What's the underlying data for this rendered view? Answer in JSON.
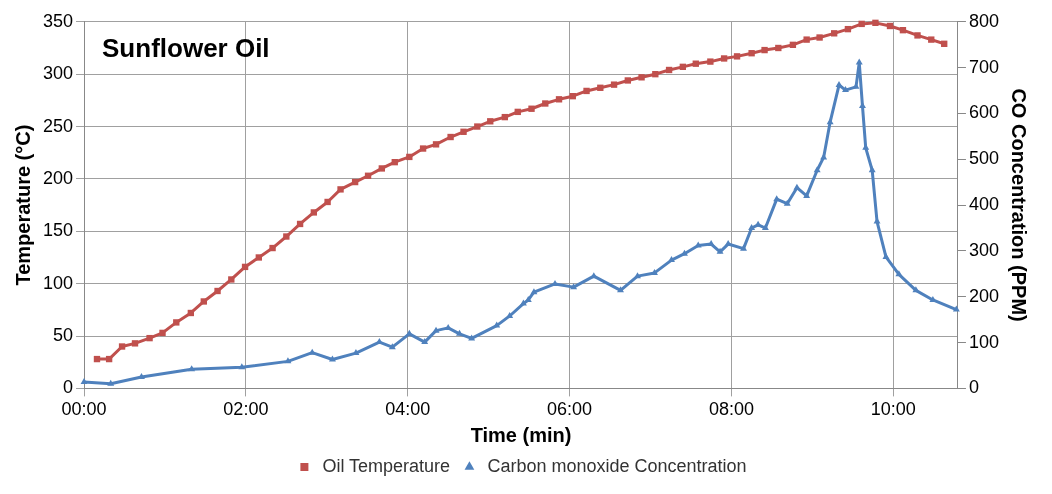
{
  "chart_data": {
    "type": "line",
    "title": "Sunflower Oil",
    "xlabel": "Time (min)",
    "ylabel": "Temperature (°C)",
    "y2label": "CO Concentration (PPM)",
    "xlim": [
      0,
      10.8
    ],
    "xticks": [
      {
        "value": 0,
        "label": "00:00"
      },
      {
        "value": 2,
        "label": "02:00"
      },
      {
        "value": 4,
        "label": "04:00"
      },
      {
        "value": 6,
        "label": "06:00"
      },
      {
        "value": 8,
        "label": "08:00"
      },
      {
        "value": 10,
        "label": "10:00"
      }
    ],
    "ylim": [
      0,
      350
    ],
    "yticks": [
      0,
      50,
      100,
      150,
      200,
      250,
      300,
      350
    ],
    "y2lim": [
      0,
      800
    ],
    "y2ticks": [
      0,
      100,
      200,
      300,
      400,
      500,
      600,
      700,
      800
    ],
    "grid": true,
    "legend": "bottom",
    "line_style": "solid",
    "series": [
      {
        "name": "Oil Temperature",
        "color": "#c0504d",
        "marker": "square",
        "x": [
          0.16,
          0.31,
          0.47,
          0.63,
          0.81,
          0.97,
          1.14,
          1.32,
          1.48,
          1.65,
          1.82,
          1.99,
          2.16,
          2.33,
          2.5,
          2.67,
          2.84,
          3.01,
          3.17,
          3.35,
          3.51,
          3.68,
          3.84,
          4.02,
          4.19,
          4.35,
          4.53,
          4.69,
          4.86,
          5.02,
          5.2,
          5.36,
          5.53,
          5.7,
          5.87,
          6.04,
          6.21,
          6.38,
          6.55,
          6.72,
          6.89,
          7.06,
          7.23,
          7.4,
          7.56,
          7.74,
          7.91,
          8.07,
          8.25,
          8.41,
          8.58,
          8.76,
          8.93,
          9.09,
          9.27,
          9.44,
          9.61,
          9.78,
          9.96,
          10.12,
          10.3,
          10.47,
          10.63
        ],
        "values": [
          28,
          28,
          40,
          43,
          48,
          53,
          63,
          72,
          83,
          93,
          104,
          116,
          125,
          134,
          145,
          157,
          168,
          178,
          190,
          197,
          203,
          210,
          216,
          221,
          229,
          233,
          240,
          245,
          250,
          255,
          259,
          264,
          267,
          272,
          276,
          279,
          284,
          287,
          290,
          294,
          297,
          300,
          304,
          307,
          310,
          312,
          315,
          317,
          320,
          323,
          325,
          328,
          333,
          335,
          339,
          343,
          348,
          349,
          346,
          342,
          337,
          333,
          329
        ]
      },
      {
        "name": "Carbon monoxide Concentration",
        "color": "#4f81bd",
        "marker": "triangle",
        "axis": "y2",
        "x": [
          0,
          0.33,
          0.71,
          1.33,
          1.95,
          2.52,
          2.82,
          3.07,
          3.36,
          3.65,
          3.81,
          4.02,
          4.21,
          4.35,
          4.5,
          4.64,
          4.79,
          5.1,
          5.26,
          5.43,
          5.49,
          5.56,
          5.82,
          6.05,
          6.3,
          6.63,
          6.84,
          7.05,
          7.26,
          7.42,
          7.59,
          7.75,
          7.86,
          7.96,
          8.15,
          8.25,
          8.33,
          8.42,
          8.56,
          8.69,
          8.81,
          8.93,
          9.06,
          9.14,
          9.22,
          9.33,
          9.41,
          9.54,
          9.58,
          9.62,
          9.66,
          9.74,
          9.8,
          9.91,
          10.07,
          10.28,
          10.49,
          10.78
        ],
        "values": [
          14,
          10,
          25,
          42,
          46,
          59,
          78,
          63,
          77,
          101,
          90,
          119,
          101,
          126,
          132,
          119,
          109,
          137,
          158,
          185,
          193,
          210,
          228,
          221,
          245,
          214,
          245,
          252,
          280,
          294,
          312,
          315,
          298,
          315,
          305,
          350,
          357,
          350,
          413,
          403,
          438,
          420,
          476,
          504,
          581,
          662,
          651,
          658,
          711,
          616,
          525,
          476,
          364,
          287,
          249,
          214,
          193,
          172
        ]
      }
    ]
  }
}
